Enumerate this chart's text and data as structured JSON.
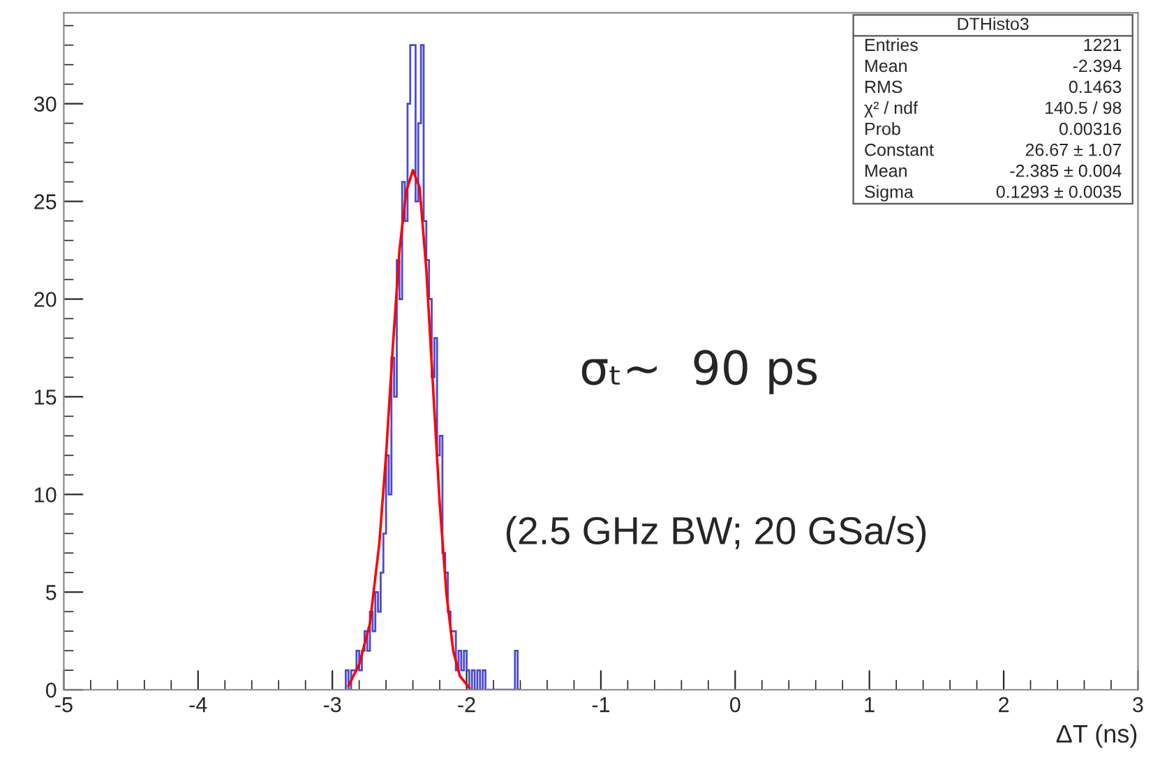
{
  "chart_data": {
    "type": "histogram",
    "title": "DTHisto3",
    "xlabel": "ΔT (ns)",
    "color": "#2a2ac8",
    "bins": [
      -2.9,
      -2.88,
      -2.86,
      -2.84,
      -2.82,
      -2.8,
      -2.78,
      -2.76,
      -2.74,
      -2.72,
      -2.7,
      -2.68,
      -2.66,
      -2.64,
      -2.62,
      -2.6,
      -2.58,
      -2.56,
      -2.54,
      -2.52,
      -2.5,
      -2.48,
      -2.46,
      -2.44,
      -2.42,
      -2.4,
      -2.38,
      -2.36,
      -2.34,
      -2.32,
      -2.3,
      -2.28,
      -2.26,
      -2.24,
      -2.22,
      -2.2,
      -2.18,
      -2.16,
      -2.14,
      -2.12,
      -2.1,
      -2.08,
      -2.06,
      -2.04,
      -2.02,
      -2.0,
      -1.98,
      -1.96,
      -1.94,
      -1.92,
      -1.9,
      -1.88,
      -1.86,
      -1.84,
      -1.82,
      -1.8,
      -1.78,
      -1.76,
      -1.74,
      -1.72,
      -1.7,
      -1.68,
      -1.66,
      -1.64,
      -1.62,
      -1.6
    ],
    "values": [
      1,
      0,
      1,
      1,
      2,
      1,
      2,
      3,
      2,
      4,
      3,
      5,
      4,
      6,
      8,
      12,
      10,
      17,
      15,
      22,
      20,
      26,
      24,
      30,
      33,
      33,
      25,
      29,
      33,
      24,
      22,
      20,
      16,
      18,
      12,
      13,
      7,
      6,
      4,
      3,
      3,
      1,
      2,
      1,
      2,
      1,
      0,
      1,
      0,
      1,
      0,
      1,
      0,
      0,
      0,
      0,
      0,
      0,
      0,
      0,
      0,
      0,
      0,
      2,
      0
    ],
    "series": [
      {
        "type": "line",
        "color": "#ff0000",
        "x": [
          -2.88,
          -2.8,
          -2.72,
          -2.65,
          -2.6,
          -2.55,
          -2.5,
          -2.45,
          -2.4,
          -2.35,
          -2.3,
          -2.25,
          -2.2,
          -2.15,
          -2.1,
          -2.05,
          -1.98
        ],
        "values": [
          0.2,
          1.3,
          3.4,
          7.5,
          12,
          17.5,
          22.5,
          25.5,
          26.6,
          25.7,
          21.5,
          15.5,
          9.5,
          4.9,
          2.0,
          0.7,
          0.1
        ]
      }
    ],
    "xlim": [
      -5,
      3
    ],
    "ylim": [
      0,
      34.65
    ],
    "xticks": [
      -5,
      -4,
      -3,
      -2,
      -1,
      0,
      1,
      2,
      3
    ],
    "yticks": [
      0,
      5,
      10,
      15,
      20,
      25,
      30
    ],
    "grid": false,
    "annotations": [
      "Entries\t1221",
      "Mean\t-2.394",
      "RMS\t0.1463",
      "χ² / ndf\t140.5 / 98",
      "Prob\t0.00316",
      "Constant\t26.67 ± 1.07",
      "Mean\t-2.385 ± 0.004",
      "Sigma\t0.1293 ± 0.0035",
      "σₜ~  90 ps",
      "(2.5 GHz BW; 20 GSa/s)"
    ]
  }
}
